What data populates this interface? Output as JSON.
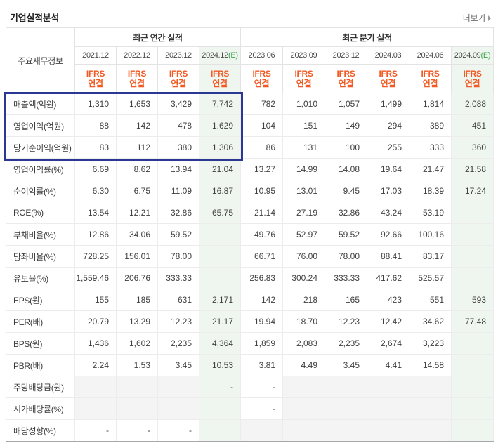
{
  "title": "기업실적분석",
  "more_label": "더보기",
  "table": {
    "corner_label": "주요재무정보",
    "standard_label": "IFRS",
    "consolidated_label": "연결",
    "estimate_mark": "E",
    "sections": [
      {
        "label": "최근 연간 실적",
        "cols": [
          {
            "date": "2021.12",
            "est": false
          },
          {
            "date": "2022.12",
            "est": false
          },
          {
            "date": "2023.12",
            "est": false
          },
          {
            "date": "2024.12",
            "est": true
          }
        ]
      },
      {
        "label": "최근 분기 실적",
        "cols": [
          {
            "date": "2023.06",
            "est": false
          },
          {
            "date": "2023.09",
            "est": false
          },
          {
            "date": "2023.12",
            "est": false
          },
          {
            "date": "2024.03",
            "est": false
          },
          {
            "date": "2024.06",
            "est": false
          },
          {
            "date": "2024.09",
            "est": true
          }
        ]
      }
    ],
    "rows": [
      {
        "label": "매출액(억원)",
        "annual": [
          "1,310",
          "1,653",
          "3,429",
          "7,742"
        ],
        "quarterly": [
          "782",
          "1,010",
          "1,057",
          "1,499",
          "1,814",
          "2,088"
        ]
      },
      {
        "label": "영업이익(억원)",
        "annual": [
          "88",
          "142",
          "478",
          "1,629"
        ],
        "quarterly": [
          "104",
          "151",
          "149",
          "294",
          "389",
          "451"
        ]
      },
      {
        "label": "당기순이익(억원)",
        "annual": [
          "83",
          "112",
          "380",
          "1,306"
        ],
        "quarterly": [
          "86",
          "131",
          "100",
          "255",
          "333",
          "360"
        ]
      },
      {
        "label": "영업이익률(%)",
        "group_start": true,
        "annual": [
          "6.69",
          "8.62",
          "13.94",
          "21.04"
        ],
        "quarterly": [
          "13.27",
          "14.99",
          "14.08",
          "19.64",
          "21.47",
          "21.58"
        ]
      },
      {
        "label": "순이익률(%)",
        "annual": [
          "6.30",
          "6.75",
          "11.09",
          "16.87"
        ],
        "quarterly": [
          "10.95",
          "13.01",
          "9.45",
          "17.03",
          "18.39",
          "17.24"
        ]
      },
      {
        "label": "ROE(%)",
        "annual": [
          "13.54",
          "12.21",
          "32.86",
          "65.75"
        ],
        "quarterly": [
          "21.14",
          "27.19",
          "32.86",
          "43.24",
          "53.19",
          ""
        ]
      },
      {
        "label": "부채비율(%)",
        "group_start": true,
        "annual": [
          "12.86",
          "34.06",
          "59.52",
          ""
        ],
        "quarterly": [
          "49.76",
          "52.97",
          "59.52",
          "92.66",
          "100.16",
          ""
        ]
      },
      {
        "label": "당좌비율(%)",
        "annual": [
          "728.25",
          "156.01",
          "78.00",
          ""
        ],
        "quarterly": [
          "66.71",
          "76.00",
          "78.00",
          "88.41",
          "83.17",
          ""
        ]
      },
      {
        "label": "유보율(%)",
        "annual": [
          "1,559.46",
          "206.76",
          "333.33",
          ""
        ],
        "quarterly": [
          "256.83",
          "300.24",
          "333.33",
          "417.62",
          "525.57",
          ""
        ]
      },
      {
        "label": "EPS(원)",
        "group_start": true,
        "annual": [
          "155",
          "185",
          "631",
          "2,171"
        ],
        "quarterly": [
          "142",
          "218",
          "165",
          "423",
          "551",
          "593"
        ]
      },
      {
        "label": "PER(배)",
        "annual": [
          "20.79",
          "13.29",
          "12.23",
          "21.17"
        ],
        "quarterly": [
          "19.94",
          "18.70",
          "12.23",
          "12.42",
          "34.62",
          "77.48"
        ]
      },
      {
        "label": "BPS(원)",
        "annual": [
          "1,436",
          "1,602",
          "2,235",
          "4,364"
        ],
        "quarterly": [
          "1,859",
          "2,083",
          "2,235",
          "2,674",
          "3,223",
          ""
        ]
      },
      {
        "label": "PBR(배)",
        "annual": [
          "2.24",
          "1.53",
          "3.45",
          "10.53"
        ],
        "quarterly": [
          "3.81",
          "4.49",
          "3.45",
          "4.41",
          "14.58",
          ""
        ]
      },
      {
        "label": "주당배당금(원)",
        "group_start": true,
        "annual": [
          null,
          null,
          null,
          "-"
        ],
        "quarterly": [
          "-",
          null,
          null,
          null,
          null,
          ""
        ]
      },
      {
        "label": "시가배당률(%)",
        "annual": [
          null,
          null,
          null,
          ""
        ],
        "quarterly": [
          "-",
          null,
          null,
          null,
          null,
          ""
        ]
      },
      {
        "label": "배당성향(%)",
        "annual": [
          "-",
          "-",
          "-",
          ""
        ],
        "quarterly": [
          null,
          null,
          null,
          null,
          null,
          ""
        ]
      }
    ],
    "highlight": {
      "first_row": "매출액(억원)",
      "last_row": "당기순이익(억원)",
      "scope": "label-and-annual-columns"
    }
  },
  "colors": {
    "accent_orange": "#f15a23",
    "estimate_green": "#3aa548",
    "estimate_bg": "#eff6ef",
    "empty_bg": "#f4f4f4",
    "highlight_border": "#2a3894"
  }
}
